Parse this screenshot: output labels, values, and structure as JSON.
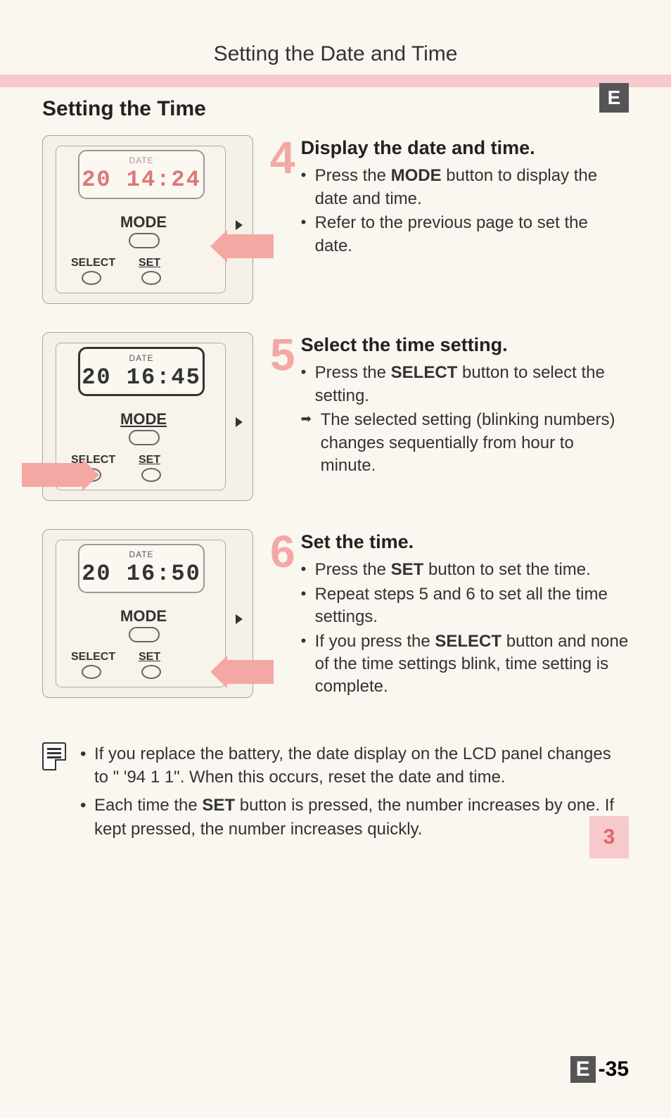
{
  "header": "Setting the Date and Time",
  "tab_letter": "E",
  "section_title": "Setting the Time",
  "steps": [
    {
      "num": "4",
      "title": "Display the date and time.",
      "items": [
        {
          "text_pre": "Press the ",
          "bold": "MODE",
          "text_post": " button to display the date and time."
        },
        {
          "text_pre": "Refer to the previous page to set the date.",
          "bold": "",
          "text_post": ""
        }
      ],
      "lcd": {
        "date_label": "DATE",
        "display": "20 14:24",
        "lcd_color": "#d98a85",
        "date_label_color": "#d4a8a3"
      },
      "diagram": {
        "mode": "MODE",
        "select": "SELECT",
        "set": "SET",
        "arrow": "mode"
      }
    },
    {
      "num": "5",
      "title": "Select the time setting.",
      "items": [
        {
          "text_pre": "Press the ",
          "bold": "SELECT",
          "text_post": " button to select the setting."
        },
        {
          "arrow": true,
          "text_pre": "The selected setting (blinking numbers) changes sequentially from hour to minute.",
          "bold": "",
          "text_post": ""
        }
      ],
      "lcd": {
        "date_label": "DATE",
        "display": "20 16:45",
        "lcd_color": "#333",
        "date_label_color": "#555"
      },
      "diagram": {
        "mode": "MODE",
        "select": "SELECT",
        "set": "SET",
        "arrow": "select"
      }
    },
    {
      "num": "6",
      "title": "Set the time.",
      "items": [
        {
          "text_pre": "Press the ",
          "bold": "SET",
          "text_post": " button to set the time."
        },
        {
          "text_pre": "Repeat steps 5 and 6 to set all the time settings.",
          "bold": "",
          "text_post": ""
        },
        {
          "text_pre": "If you press the ",
          "bold": "SELECT",
          "text_post": " button and none of the time settings blink, time setting is complete."
        }
      ],
      "lcd": {
        "date_label": "DATE",
        "display": "20 16:50",
        "lcd_color": "#333",
        "date_label_color": "#555"
      },
      "diagram": {
        "mode": "MODE",
        "select": "SELECT",
        "set": "SET",
        "arrow": "set"
      }
    }
  ],
  "notes": [
    {
      "text_pre": "If you replace the battery, the date display on the LCD panel changes to \" '94 1 1\". When this occurs, reset the date and time.",
      "bold": "",
      "text_post": ""
    },
    {
      "text_pre": "Each time the ",
      "bold": "SET",
      "text_post": " button is pressed, the number increases by one. If kept pressed, the number increases quickly."
    }
  ],
  "side_tab": "3",
  "page_num": {
    "prefix": "E",
    "num": "-35"
  },
  "colors": {
    "accent": "#f4a8a3",
    "pink_bar": "#f7c9cc",
    "dark_box": "#555",
    "lcd_red": "#d77"
  }
}
